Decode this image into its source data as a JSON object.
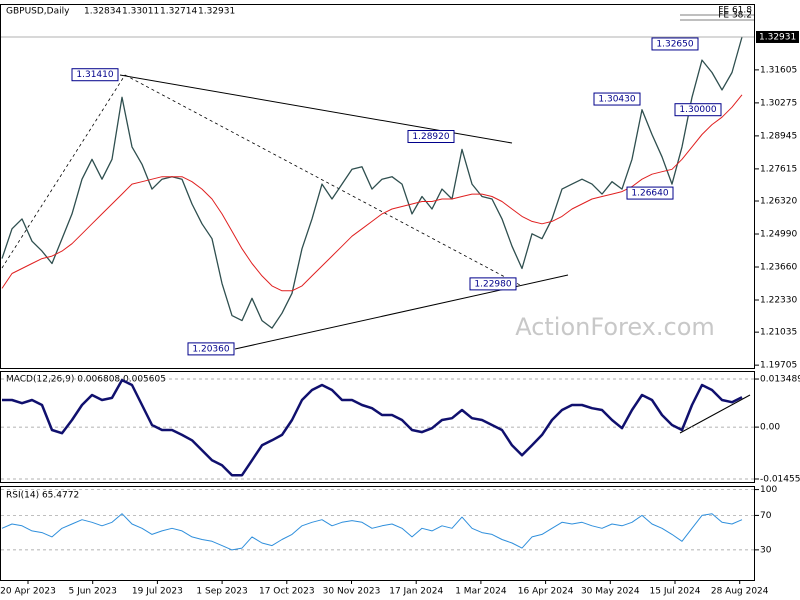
{
  "chart_data": [
    {
      "type": "line",
      "title": "GBPUSD,Daily",
      "quote": [
        {
          "value": 1.32834,
          "label": "1.32834"
        },
        {
          "value": 1.33011,
          "label": "1.33011"
        },
        {
          "value": 1.32714,
          "label": "1.32714"
        },
        {
          "value": 1.32931,
          "label": "1.32931"
        }
      ],
      "last": {
        "value": 1.32931,
        "label": "1.32931"
      },
      "watermark": "ActionForex.com",
      "fe_labels": [
        "FE 61.8",
        "FE 38.2"
      ],
      "ylim": [
        1.1959,
        1.3422
      ],
      "yticks": [
        1.31605,
        1.30275,
        1.28945,
        1.27615,
        {
          "value": 1.2632,
          "label": "1.26320"
        },
        {
          "value": 1.2499,
          "label": "1.24990"
        },
        {
          "value": 1.2366,
          "label": "1.23660"
        },
        {
          "value": 1.2233,
          "label": "1.22330"
        },
        1.21035,
        1.19705
      ],
      "annotations": [
        {
          "value": 1.3141,
          "label": "1.31410"
        },
        {
          "value": 1.2892,
          "label": "1.28920"
        },
        {
          "value": 1.2298,
          "label": "1.22980"
        },
        {
          "value": 1.2036,
          "label": "1.20360"
        },
        {
          "value": 1.2664,
          "label": "1.26640"
        },
        {
          "value": 1.3043,
          "label": "1.30430"
        },
        {
          "value": 1.3265,
          "label": "1.32650"
        },
        {
          "value": 1.3,
          "label": "1.30000"
        }
      ],
      "series": [
        {
          "color": "#2f4f4f",
          "values": [
            1.24,
            1.252,
            1.256,
            1.247,
            1.243,
            1.238,
            1.248,
            1.258,
            1.272,
            1.28,
            1.272,
            1.28,
            1.305,
            1.285,
            1.278,
            1.268,
            1.272,
            1.273,
            1.272,
            1.262,
            1.254,
            1.248,
            1.23,
            1.217,
            1.215,
            1.224,
            1.215,
            1.212,
            1.218,
            1.226,
            1.244,
            1.256,
            1.27,
            1.264,
            1.27,
            1.276,
            1.277,
            1.268,
            1.272,
            1.273,
            1.27,
            1.258,
            1.265,
            1.26,
            1.268,
            1.264,
            1.284,
            1.27,
            1.265,
            1.264,
            1.256,
            1.245,
            1.236,
            1.25,
            1.248,
            1.256,
            1.268,
            1.27,
            1.272,
            1.27,
            1.266,
            1.271,
            1.268,
            1.28,
            1.3,
            1.29,
            1.281,
            1.27,
            1.285,
            1.305,
            1.32,
            1.315,
            1.308,
            1.315,
            1.3293
          ]
        },
        {
          "color": "#e02020",
          "values": [
            1.228,
            1.234,
            1.236,
            1.238,
            1.24,
            1.241,
            1.243,
            1.246,
            1.25,
            1.254,
            1.258,
            1.262,
            1.266,
            1.27,
            1.271,
            1.272,
            1.273,
            1.273,
            1.273,
            1.271,
            1.268,
            1.264,
            1.258,
            1.251,
            1.244,
            1.238,
            1.233,
            1.229,
            1.227,
            1.227,
            1.229,
            1.233,
            1.237,
            1.241,
            1.245,
            1.249,
            1.252,
            1.255,
            1.258,
            1.26,
            1.261,
            1.262,
            1.263,
            1.263,
            1.264,
            1.264,
            1.265,
            1.266,
            1.266,
            1.265,
            1.263,
            1.26,
            1.257,
            1.255,
            1.254,
            1.255,
            1.257,
            1.26,
            1.262,
            1.264,
            1.265,
            1.266,
            1.267,
            1.269,
            1.272,
            1.274,
            1.275,
            1.276,
            1.28,
            1.285,
            1.29,
            1.294,
            1.297,
            1.301,
            1.306
          ]
        }
      ]
    },
    {
      "type": "line",
      "label": "MACD(12,26,9) 0.006808 0.005605",
      "ylim": [
        -0.0154,
        0.01546
      ],
      "yticks": [
        0.013489,
        {
          "value": 0,
          "label": "0.00"
        },
        -0.014554
      ],
      "series": [
        {
          "color": "#10106e",
          "values": [
            0.0076,
            0.0076,
            0.0067,
            0.0076,
            0.0062,
            -0.0008,
            -0.0017,
            0.002,
            0.0062,
            0.009,
            0.0076,
            0.0082,
            0.0132,
            0.0118,
            0.0062,
            0.0006,
            -0.0008,
            -0.0008,
            -0.0022,
            -0.0037,
            -0.0065,
            -0.0093,
            -0.0107,
            -0.0135,
            -0.0135,
            -0.0093,
            -0.0051,
            -0.0037,
            -0.0022,
            0.002,
            0.0076,
            0.0104,
            0.0118,
            0.0104,
            0.0076,
            0.0076,
            0.0062,
            0.0053,
            0.0034,
            0.0034,
            0.002,
            -0.0008,
            -0.0014,
            -0.0003,
            0.002,
            0.0025,
            0.0048,
            0.0025,
            0.002,
            0.0006,
            -0.0008,
            -0.0051,
            -0.0079,
            -0.0051,
            -0.0022,
            0.002,
            0.0048,
            0.0062,
            0.0062,
            0.0053,
            0.0048,
            0.002,
            -0.0003,
            0.0048,
            0.009,
            0.0076,
            0.0034,
            0.0006,
            -0.0008,
            0.0062,
            0.0118,
            0.0104,
            0.0076,
            0.007,
            0.0084
          ]
        }
      ]
    },
    {
      "type": "line",
      "label": "RSI(14) 65.4772",
      "ylim": [
        -5,
        103
      ],
      "yticks": [
        100,
        70,
        30
      ],
      "xtick_labels": [
        "20 Apr 2023",
        "5 Jun 2023",
        "19 Jul 2023",
        "1 Sep 2023",
        "17 Oct 2023",
        "30 Nov 2023",
        "17 Jan 2024",
        "1 Mar 2024",
        "16 Apr 2024",
        "30 May 2024",
        "15 Jul 2024",
        "28 Aug 2024"
      ],
      "series": [
        {
          "color": "#2f8fdc",
          "values": [
            55,
            60,
            58,
            52,
            50,
            45,
            55,
            60,
            65,
            62,
            58,
            62,
            72,
            60,
            55,
            48,
            52,
            55,
            52,
            45,
            42,
            40,
            35,
            30,
            32,
            45,
            38,
            35,
            42,
            48,
            58,
            62,
            65,
            58,
            62,
            64,
            62,
            55,
            58,
            60,
            55,
            45,
            55,
            52,
            58,
            55,
            68,
            55,
            50,
            48,
            42,
            38,
            32,
            45,
            48,
            55,
            62,
            60,
            62,
            58,
            55,
            60,
            58,
            62,
            70,
            60,
            55,
            48,
            40,
            55,
            70,
            72,
            62,
            60,
            65
          ]
        }
      ]
    }
  ]
}
